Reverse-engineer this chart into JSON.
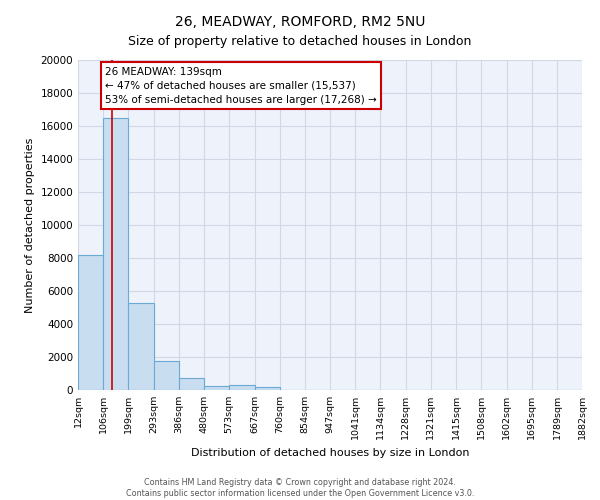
{
  "title": "26, MEADWAY, ROMFORD, RM2 5NU",
  "subtitle": "Size of property relative to detached houses in London",
  "xlabel": "Distribution of detached houses by size in London",
  "ylabel": "Number of detached properties",
  "bin_edges": [
    12,
    106,
    199,
    293,
    386,
    480,
    573,
    667,
    760,
    854,
    947,
    1041,
    1134,
    1228,
    1321,
    1415,
    1508,
    1602,
    1695,
    1789,
    1882
  ],
  "bin_labels": [
    "12sqm",
    "106sqm",
    "199sqm",
    "293sqm",
    "386sqm",
    "480sqm",
    "573sqm",
    "667sqm",
    "760sqm",
    "854sqm",
    "947sqm",
    "1041sqm",
    "1134sqm",
    "1228sqm",
    "1321sqm",
    "1415sqm",
    "1508sqm",
    "1602sqm",
    "1695sqm",
    "1789sqm",
    "1882sqm"
  ],
  "bar_heights": [
    8200,
    16500,
    5300,
    1750,
    750,
    220,
    290,
    190,
    0,
    0,
    0,
    0,
    0,
    0,
    0,
    0,
    0,
    0,
    0,
    0
  ],
  "bar_color": "#c9ddf0",
  "bar_edge_color": "#6aaad4",
  "property_label": "26 MEADWAY: 139sqm",
  "annotation_line1": "← 47% of detached houses are smaller (15,537)",
  "annotation_line2": "53% of semi-detached houses are larger (17,268) →",
  "red_line_x": 139,
  "ylim": [
    0,
    20000
  ],
  "yticks": [
    0,
    2000,
    4000,
    6000,
    8000,
    10000,
    12000,
    14000,
    16000,
    18000,
    20000
  ],
  "annotation_box_facecolor": "white",
  "annotation_box_edgecolor": "#cc0000",
  "red_line_color": "#cc0000",
  "footer_line1": "Contains HM Land Registry data © Crown copyright and database right 2024.",
  "footer_line2": "Contains public sector information licensed under the Open Government Licence v3.0.",
  "fig_background_color": "#ffffff",
  "plot_background_color": "#edf2fb",
  "grid_color": "#d0d8e8",
  "title_fontsize": 10,
  "subtitle_fontsize": 9
}
